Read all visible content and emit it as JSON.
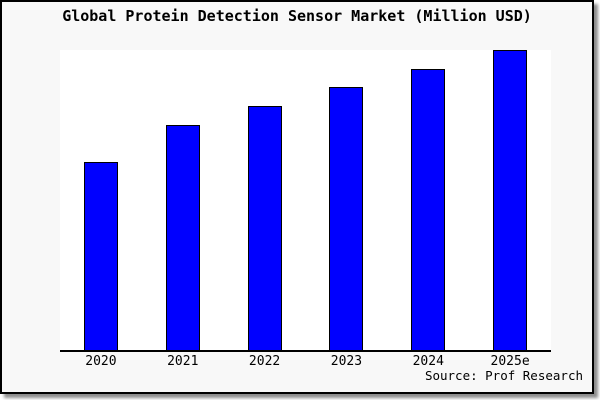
{
  "chart_data": {
    "type": "bar",
    "title": "Global Protein Detection Sensor Market (Million USD)",
    "categories": [
      "2020",
      "2021",
      "2022",
      "2023",
      "2024",
      "2025e"
    ],
    "values": [
      62.7,
      75.0,
      81.3,
      87.7,
      93.7,
      100
    ],
    "value_scale_note": "no numeric y-axis shown; values estimated relative to 2025e = 100",
    "xlabel": "",
    "ylabel": "",
    "ylim": [
      0,
      100
    ],
    "grid": false,
    "legend": false,
    "y_axis_visible": false,
    "bar_color": "#0000ff",
    "bar_edge_color": "#000000",
    "source_note": "Source: Prof Research"
  },
  "colors": {
    "frame_background": "#f8f8f8",
    "plot_background": "#ffffff",
    "frame_border": "#000000",
    "text": "#000000"
  }
}
